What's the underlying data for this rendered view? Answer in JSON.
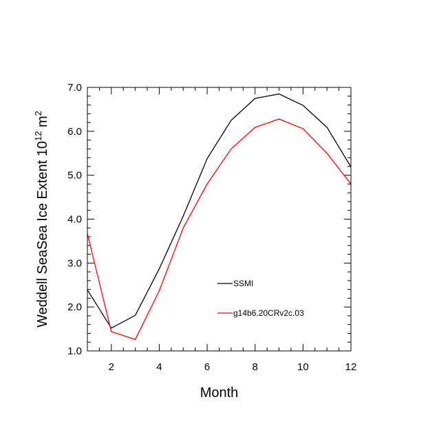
{
  "chart_data": {
    "type": "line",
    "title": "",
    "xlabel": "Month",
    "ylabel": {
      "prefix": "Weddell SeaSea Ice Extent 10",
      "sup1": "12",
      "unit": " m",
      "sup2": "2"
    },
    "xlim": [
      1,
      12
    ],
    "ylim": [
      1.0,
      7.0
    ],
    "x_ticks": [
      2,
      4,
      6,
      8,
      10,
      12
    ],
    "x_tick_labels": [
      "2",
      "4",
      "6",
      "8",
      "10",
      "12"
    ],
    "y_ticks": [
      1.0,
      2.0,
      3.0,
      4.0,
      5.0,
      6.0,
      7.0
    ],
    "y_tick_labels": [
      "1.0",
      "2.0",
      "3.0",
      "4.0",
      "5.0",
      "6.0",
      "7.0"
    ],
    "x": [
      1,
      2,
      3,
      4,
      5,
      6,
      7,
      8,
      9,
      10,
      11,
      12
    ],
    "series": [
      {
        "name": "SSMI",
        "color": "#000000",
        "values": [
          2.39,
          1.52,
          1.81,
          2.87,
          4.07,
          5.38,
          6.25,
          6.75,
          6.85,
          6.59,
          6.09,
          5.19
        ]
      },
      {
        "name": "g14b6.20CRv2c.03",
        "color": "#ff0000",
        "values": [
          3.67,
          1.44,
          1.26,
          2.37,
          3.8,
          4.8,
          5.6,
          6.09,
          6.28,
          6.06,
          5.5,
          4.8
        ]
      }
    ],
    "legend_position": "lower-middle",
    "grid": false
  }
}
